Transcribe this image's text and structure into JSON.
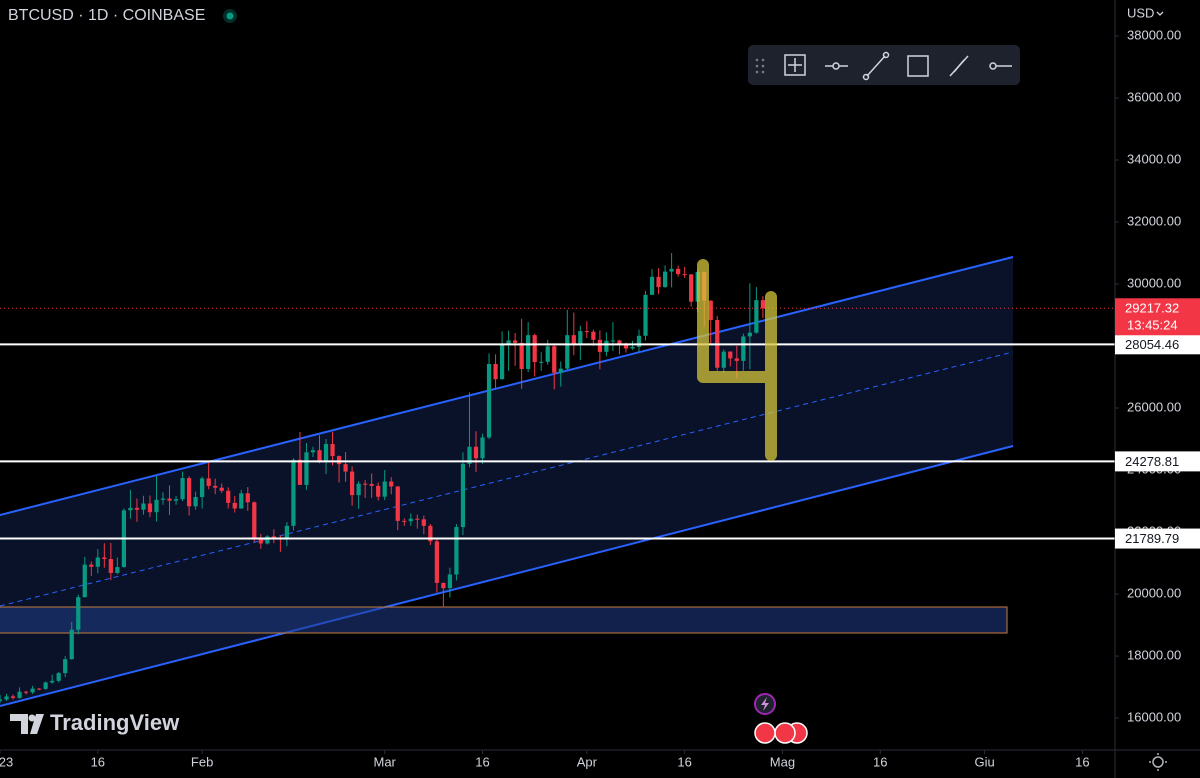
{
  "header": {
    "title": "BTCUSD · 1D · COINBASE",
    "currency": "USD",
    "watermark": "TradingView"
  },
  "chart_data": {
    "type": "candlestick",
    "x": [
      "2023-01-01",
      "2023-01-02",
      "2023-01-03",
      "2023-01-04",
      "2023-01-05",
      "2023-01-06",
      "2023-01-07",
      "2023-01-08",
      "2023-01-09",
      "2023-01-10",
      "2023-01-11",
      "2023-01-12",
      "2023-01-13",
      "2023-01-14",
      "2023-01-15",
      "2023-01-16",
      "2023-01-17",
      "2023-01-18",
      "2023-01-19",
      "2023-01-20",
      "2023-01-21",
      "2023-01-22",
      "2023-01-23",
      "2023-01-24",
      "2023-01-25",
      "2023-01-26",
      "2023-01-27",
      "2023-01-28",
      "2023-01-29",
      "2023-01-30",
      "2023-01-31",
      "2023-02-01",
      "2023-02-02",
      "2023-02-03",
      "2023-02-04",
      "2023-02-05",
      "2023-02-06",
      "2023-02-07",
      "2023-02-08",
      "2023-02-09",
      "2023-02-10",
      "2023-02-11",
      "2023-02-12",
      "2023-02-13",
      "2023-02-14",
      "2023-02-15",
      "2023-02-16",
      "2023-02-17",
      "2023-02-18",
      "2023-02-19",
      "2023-02-20",
      "2023-02-21",
      "2023-02-22",
      "2023-02-23",
      "2023-02-24",
      "2023-02-25",
      "2023-02-26",
      "2023-02-27",
      "2023-02-28",
      "2023-03-01",
      "2023-03-02",
      "2023-03-03",
      "2023-03-04",
      "2023-03-05",
      "2023-03-06",
      "2023-03-07",
      "2023-03-08",
      "2023-03-09",
      "2023-03-10",
      "2023-03-11",
      "2023-03-12",
      "2023-03-13",
      "2023-03-14",
      "2023-03-15",
      "2023-03-16",
      "2023-03-17",
      "2023-03-18",
      "2023-03-19",
      "2023-03-20",
      "2023-03-21",
      "2023-03-22",
      "2023-03-23",
      "2023-03-24",
      "2023-03-25",
      "2023-03-26",
      "2023-03-27",
      "2023-03-28",
      "2023-03-29",
      "2023-03-30",
      "2023-03-31",
      "2023-04-01",
      "2023-04-02",
      "2023-04-03",
      "2023-04-04",
      "2023-04-05",
      "2023-04-06",
      "2023-04-07",
      "2023-04-08",
      "2023-04-09",
      "2023-04-10",
      "2023-04-11",
      "2023-04-12",
      "2023-04-13",
      "2023-04-14",
      "2023-04-15",
      "2023-04-16",
      "2023-04-17",
      "2023-04-18",
      "2023-04-19",
      "2023-04-20",
      "2023-04-21",
      "2023-04-22",
      "2023-04-23",
      "2023-04-24",
      "2023-04-25",
      "2023-04-26",
      "2023-04-27",
      "2023-04-28"
    ],
    "ohlc": [
      [
        16550,
        16750,
        16480,
        16600
      ],
      [
        16600,
        16780,
        16550,
        16700
      ],
      [
        16700,
        16760,
        16600,
        16650
      ],
      [
        16650,
        16990,
        16620,
        16850
      ],
      [
        16850,
        16880,
        16760,
        16830
      ],
      [
        16830,
        17040,
        16780,
        16950
      ],
      [
        16950,
        16970,
        16900,
        16940
      ],
      [
        16940,
        17180,
        16910,
        17150
      ],
      [
        17150,
        17400,
        17110,
        17200
      ],
      [
        17200,
        17490,
        17150,
        17450
      ],
      [
        17450,
        18000,
        17320,
        17900
      ],
      [
        17900,
        19100,
        17880,
        18850
      ],
      [
        18850,
        19980,
        18700,
        19900
      ],
      [
        19900,
        21200,
        19890,
        20950
      ],
      [
        20950,
        21050,
        20580,
        20880
      ],
      [
        20880,
        21450,
        20670,
        21180
      ],
      [
        21180,
        21640,
        20850,
        21130
      ],
      [
        21130,
        21650,
        20450,
        20680
      ],
      [
        20680,
        21180,
        20640,
        20870
      ],
      [
        20870,
        22760,
        20850,
        22700
      ],
      [
        22700,
        23360,
        22430,
        22780
      ],
      [
        22780,
        23080,
        22330,
        22720
      ],
      [
        22720,
        23170,
        22560,
        22920
      ],
      [
        22920,
        23180,
        22480,
        22640
      ],
      [
        22640,
        23800,
        22340,
        23040
      ],
      [
        23040,
        23280,
        22880,
        23080
      ],
      [
        23080,
        23500,
        22550,
        23010
      ],
      [
        23010,
        23160,
        22880,
        23060
      ],
      [
        23060,
        23950,
        23000,
        23740
      ],
      [
        23740,
        23800,
        22530,
        22830
      ],
      [
        22830,
        23300,
        22720,
        23130
      ],
      [
        23130,
        23790,
        22760,
        23730
      ],
      [
        23730,
        24240,
        23380,
        23490
      ],
      [
        23490,
        23720,
        23220,
        23430
      ],
      [
        23430,
        23570,
        23260,
        23330
      ],
      [
        23330,
        23440,
        22760,
        22940
      ],
      [
        22940,
        23160,
        22630,
        22760
      ],
      [
        22760,
        23360,
        22750,
        23250
      ],
      [
        23250,
        23450,
        22680,
        22960
      ],
      [
        22960,
        22990,
        21690,
        21800
      ],
      [
        21800,
        21940,
        21460,
        21630
      ],
      [
        21630,
        21900,
        21600,
        21860
      ],
      [
        21860,
        22090,
        21640,
        21790
      ],
      [
        21790,
        21890,
        21360,
        21780
      ],
      [
        21780,
        22320,
        21540,
        22200
      ],
      [
        22200,
        24380,
        22050,
        24330
      ],
      [
        24330,
        25230,
        23520,
        23520
      ],
      [
        23520,
        24870,
        23360,
        24570
      ],
      [
        24570,
        24750,
        24420,
        24640
      ],
      [
        24640,
        25120,
        24220,
        24300
      ],
      [
        24300,
        25000,
        23870,
        24840
      ],
      [
        24840,
        25230,
        24150,
        24450
      ],
      [
        24450,
        24470,
        23600,
        24190
      ],
      [
        24190,
        24580,
        23620,
        23950
      ],
      [
        23950,
        24120,
        22850,
        23190
      ],
      [
        23190,
        23640,
        22750,
        23560
      ],
      [
        23560,
        23680,
        23100,
        23550
      ],
      [
        23550,
        23890,
        23100,
        23490
      ],
      [
        23490,
        23600,
        23020,
        23140
      ],
      [
        23140,
        24000,
        23030,
        23630
      ],
      [
        23630,
        23770,
        23220,
        23470
      ],
      [
        23470,
        23480,
        22060,
        22360
      ],
      [
        22360,
        22440,
        22200,
        22350
      ],
      [
        22350,
        22600,
        22200,
        22430
      ],
      [
        22430,
        22560,
        22110,
        22410
      ],
      [
        22410,
        22530,
        21930,
        22200
      ],
      [
        22200,
        22260,
        21580,
        21700
      ],
      [
        21700,
        21820,
        20050,
        20360
      ],
      [
        20360,
        20370,
        19570,
        20190
      ],
      [
        20190,
        20850,
        19890,
        20630
      ],
      [
        20630,
        22260,
        20440,
        22160
      ],
      [
        22160,
        24570,
        21900,
        24200
      ],
      [
        24200,
        26500,
        24090,
        24750
      ],
      [
        24750,
        25250,
        23940,
        24380
      ],
      [
        24380,
        25170,
        24200,
        25050
      ],
      [
        25050,
        27760,
        25000,
        27420
      ],
      [
        27420,
        27730,
        26640,
        26930
      ],
      [
        26930,
        28470,
        26910,
        28040
      ],
      [
        28040,
        28500,
        27200,
        28180
      ],
      [
        28180,
        28420,
        27360,
        28100
      ],
      [
        28100,
        28880,
        26620,
        27260
      ],
      [
        27260,
        28770,
        27160,
        28350
      ],
      [
        28350,
        28400,
        27020,
        27480
      ],
      [
        27480,
        27800,
        27200,
        27490
      ],
      [
        27490,
        28200,
        27400,
        27990
      ],
      [
        27990,
        28040,
        26600,
        27140
      ],
      [
        27140,
        27500,
        26690,
        27270
      ],
      [
        27270,
        29170,
        27230,
        28350
      ],
      [
        28350,
        29080,
        27700,
        28030
      ],
      [
        28030,
        28650,
        27540,
        28480
      ],
      [
        28480,
        28800,
        28260,
        28460
      ],
      [
        28460,
        28530,
        28000,
        28200
      ],
      [
        28200,
        28500,
        27250,
        27810
      ],
      [
        27810,
        28440,
        27670,
        28170
      ],
      [
        28170,
        28770,
        27840,
        28180
      ],
      [
        28180,
        28200,
        27730,
        28050
      ],
      [
        28050,
        28110,
        27790,
        27920
      ],
      [
        27920,
        28170,
        27880,
        27970
      ],
      [
        27970,
        28530,
        27810,
        28330
      ],
      [
        28330,
        29780,
        28180,
        29650
      ],
      [
        29650,
        30480,
        29640,
        30230
      ],
      [
        30230,
        30510,
        29670,
        29900
      ],
      [
        29900,
        30600,
        29880,
        30400
      ],
      [
        30400,
        31000,
        29890,
        30490
      ],
      [
        30490,
        30590,
        30240,
        30320
      ],
      [
        30320,
        30550,
        30200,
        30310
      ],
      [
        30310,
        30320,
        29270,
        29430
      ],
      [
        29430,
        30480,
        29100,
        30390
      ],
      [
        30390,
        30400,
        28620,
        29460
      ],
      [
        29460,
        29480,
        28030,
        28840
      ],
      [
        28840,
        28970,
        27200,
        27300
      ],
      [
        27300,
        27890,
        27130,
        27820
      ],
      [
        27820,
        27830,
        27340,
        27600
      ],
      [
        27600,
        28000,
        26960,
        27520
      ],
      [
        27520,
        28400,
        27200,
        28310
      ],
      [
        28310,
        30020,
        27250,
        28430
      ],
      [
        28430,
        29900,
        28400,
        29480
      ],
      [
        29480,
        29610,
        28900,
        29217
      ]
    ],
    "up_color": "#089981",
    "down_color": "#f23645",
    "xlim": [
      "2023-01-01",
      "2023-06-21"
    ],
    "xticks": [
      {
        "value": "2023-01-01",
        "label": "23"
      },
      {
        "value": "2023-01-16",
        "label": "16"
      },
      {
        "value": "2023-02-01",
        "label": "Feb"
      },
      {
        "value": "2023-03-01",
        "label": "Mar"
      },
      {
        "value": "2023-03-16",
        "label": "16"
      },
      {
        "value": "2023-04-01",
        "label": "Apr"
      },
      {
        "value": "2023-04-16",
        "label": "16"
      },
      {
        "value": "2023-05-01",
        "label": "Mag"
      },
      {
        "value": "2023-05-16",
        "label": "16"
      },
      {
        "value": "2023-06-01",
        "label": "Giu"
      },
      {
        "value": "2023-06-16",
        "label": "16"
      }
    ],
    "ylim": [
      14970,
      39160
    ],
    "yticks": [
      {
        "value": 16000,
        "label": "16000.00"
      },
      {
        "value": 18000,
        "label": "18000.00"
      },
      {
        "value": 20000,
        "label": "20000.00"
      },
      {
        "value": 22000,
        "label": "22000.00"
      },
      {
        "value": 24000,
        "label": "24000.00"
      },
      {
        "value": 26000,
        "label": "26000.00"
      },
      {
        "value": 28000,
        "label": "28000.00"
      },
      {
        "value": 30000,
        "label": "30000.00"
      },
      {
        "value": 32000,
        "label": "32000.00"
      },
      {
        "value": 34000,
        "label": "34000.00"
      },
      {
        "value": 36000,
        "label": "36000.00"
      },
      {
        "value": 38000,
        "label": "38000.00"
      }
    ],
    "levels": [
      28054.46,
      24278.81,
      21789.79
    ],
    "last_price": 29217.32,
    "countdown": "13:45:24"
  }
}
